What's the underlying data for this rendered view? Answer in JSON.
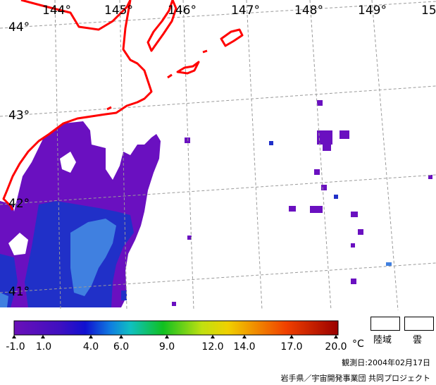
{
  "map": {
    "lon_labels": [
      "144°",
      "145°",
      "146°",
      "147°",
      "148°",
      "149°",
      "15"
    ],
    "lat_labels": [
      "44°",
      "43°",
      "42°",
      "41°"
    ]
  },
  "legend": {
    "ticks": [
      "-1.0",
      "1.0",
      "4.0",
      "6.0",
      "9.0",
      "12.0",
      "14.0",
      "17.0",
      "20.0"
    ],
    "unit": "°C",
    "land_label": "陸域",
    "cloud_label": "雲"
  },
  "footer": {
    "observation_date": "観測日:2004年02月17日",
    "credit": "岩手県／宇宙開発事業団 共同プロジェクト"
  },
  "colors": {
    "coastline": "#ff0000",
    "grid": "#9a9a9a",
    "sst_cold": "#6a10c0",
    "sst_mid": "#2030c8",
    "sst_warm": "#4080e0"
  }
}
